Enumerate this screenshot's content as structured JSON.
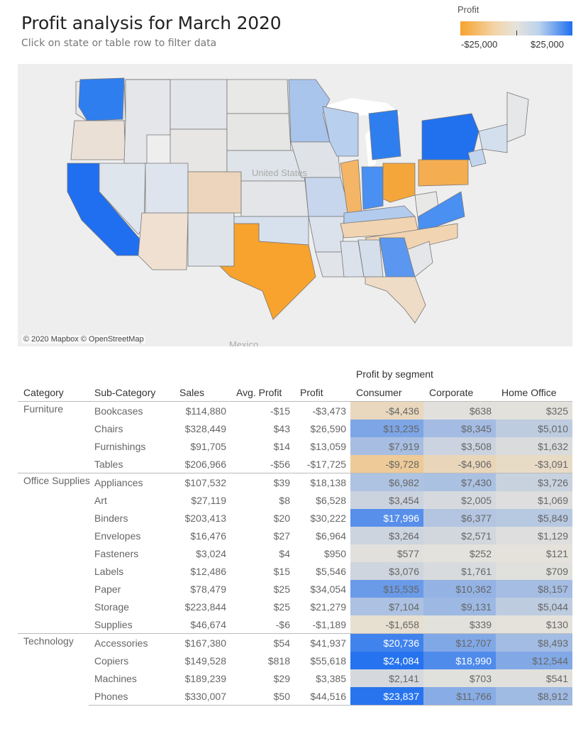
{
  "header": {
    "title": "Profit analysis for March 2020",
    "subtitle": "Click on state or table row to filter data"
  },
  "legend": {
    "title": "Profit",
    "min_label": "-$25,000",
    "max_label": "$25,000",
    "min_color": "#f7a32d",
    "mid_color": "#e6e3dc",
    "max_color": "#1f6ff0"
  },
  "map": {
    "credit": "© 2020 Mapbox © OpenStreetMap",
    "country_label": "United States",
    "neighbor_label": "Mexico",
    "states": [
      {
        "name": "WA",
        "color": "#2f7ef0"
      },
      {
        "name": "OR",
        "color": "#ebe0d6"
      },
      {
        "name": "CA",
        "color": "#1f6ff0"
      },
      {
        "name": "TX",
        "color": "#f7a32d"
      },
      {
        "name": "IL",
        "color": "#f4b567"
      },
      {
        "name": "OH",
        "color": "#f5a63a"
      },
      {
        "name": "PA",
        "color": "#f5ad52"
      },
      {
        "name": "NY",
        "color": "#2171ef"
      },
      {
        "name": "MI",
        "color": "#2f7ef0"
      },
      {
        "name": "IN",
        "color": "#4a8ff2"
      },
      {
        "name": "VA",
        "color": "#4a8ff2"
      },
      {
        "name": "GA",
        "color": "#5b97f0"
      },
      {
        "name": "FL",
        "color": "#eedcc7"
      },
      {
        "name": "NC",
        "color": "#f1d4b2"
      },
      {
        "name": "CO",
        "color": "#ecd5bc"
      },
      {
        "name": "AZ",
        "color": "#efe0d1"
      },
      {
        "name": "MN",
        "color": "#a9c5ec"
      },
      {
        "name": "WI",
        "color": "#b9cfee"
      }
    ]
  },
  "table": {
    "segment_header": "Profit by segment",
    "columns": [
      "Category",
      "Sub-Category",
      "Sales",
      "Avg. Profit",
      "Profit",
      "Consumer",
      "Corporate",
      "Home Office"
    ],
    "groups": [
      {
        "category": "Furniture",
        "rows": [
          {
            "sub": "Bookcases",
            "sales": "$114,880",
            "avg": "-$15",
            "profit": "-$3,473",
            "consumer": "-$4,436",
            "corporate": "$638",
            "home": "$325"
          },
          {
            "sub": "Chairs",
            "sales": "$328,449",
            "avg": "$43",
            "profit": "$26,590",
            "consumer": "$13,235",
            "corporate": "$8,345",
            "home": "$5,010"
          },
          {
            "sub": "Furnishings",
            "sales": "$91,705",
            "avg": "$14",
            "profit": "$13,059",
            "consumer": "$7,919",
            "corporate": "$3,508",
            "home": "$1,632"
          },
          {
            "sub": "Tables",
            "sales": "$206,966",
            "avg": "-$56",
            "profit": "-$17,725",
            "consumer": "-$9,728",
            "corporate": "-$4,906",
            "home": "-$3,091"
          }
        ]
      },
      {
        "category": "Office Supplies",
        "rows": [
          {
            "sub": "Appliances",
            "sales": "$107,532",
            "avg": "$39",
            "profit": "$18,138",
            "consumer": "$6,982",
            "corporate": "$7,430",
            "home": "$3,726"
          },
          {
            "sub": "Art",
            "sales": "$27,119",
            "avg": "$8",
            "profit": "$6,528",
            "consumer": "$3,454",
            "corporate": "$2,005",
            "home": "$1,069"
          },
          {
            "sub": "Binders",
            "sales": "$203,413",
            "avg": "$20",
            "profit": "$30,222",
            "consumer": "$17,996",
            "corporate": "$6,377",
            "home": "$5,849"
          },
          {
            "sub": "Envelopes",
            "sales": "$16,476",
            "avg": "$27",
            "profit": "$6,964",
            "consumer": "$3,264",
            "corporate": "$2,571",
            "home": "$1,129"
          },
          {
            "sub": "Fasteners",
            "sales": "$3,024",
            "avg": "$4",
            "profit": "$950",
            "consumer": "$577",
            "corporate": "$252",
            "home": "$121"
          },
          {
            "sub": "Labels",
            "sales": "$12,486",
            "avg": "$15",
            "profit": "$5,546",
            "consumer": "$3,076",
            "corporate": "$1,761",
            "home": "$709"
          },
          {
            "sub": "Paper",
            "sales": "$78,479",
            "avg": "$25",
            "profit": "$34,054",
            "consumer": "$15,535",
            "corporate": "$10,362",
            "home": "$8,157"
          },
          {
            "sub": "Storage",
            "sales": "$223,844",
            "avg": "$25",
            "profit": "$21,279",
            "consumer": "$7,104",
            "corporate": "$9,131",
            "home": "$5,044"
          },
          {
            "sub": "Supplies",
            "sales": "$46,674",
            "avg": "-$6",
            "profit": "-$1,189",
            "consumer": "-$1,658",
            "corporate": "$339",
            "home": "$130"
          }
        ]
      },
      {
        "category": "Technology",
        "rows": [
          {
            "sub": "Accessories",
            "sales": "$167,380",
            "avg": "$54",
            "profit": "$41,937",
            "consumer": "$20,736",
            "corporate": "$12,707",
            "home": "$8,493"
          },
          {
            "sub": "Copiers",
            "sales": "$149,528",
            "avg": "$818",
            "profit": "$55,618",
            "consumer": "$24,084",
            "corporate": "$18,990",
            "home": "$12,544"
          },
          {
            "sub": "Machines",
            "sales": "$189,239",
            "avg": "$29",
            "profit": "$3,385",
            "consumer": "$2,141",
            "corporate": "$703",
            "home": "$541"
          },
          {
            "sub": "Phones",
            "sales": "$330,007",
            "avg": "$50",
            "profit": "$44,516",
            "consumer": "$23,837",
            "corporate": "$11,766",
            "home": "$8,912"
          }
        ]
      }
    ]
  }
}
